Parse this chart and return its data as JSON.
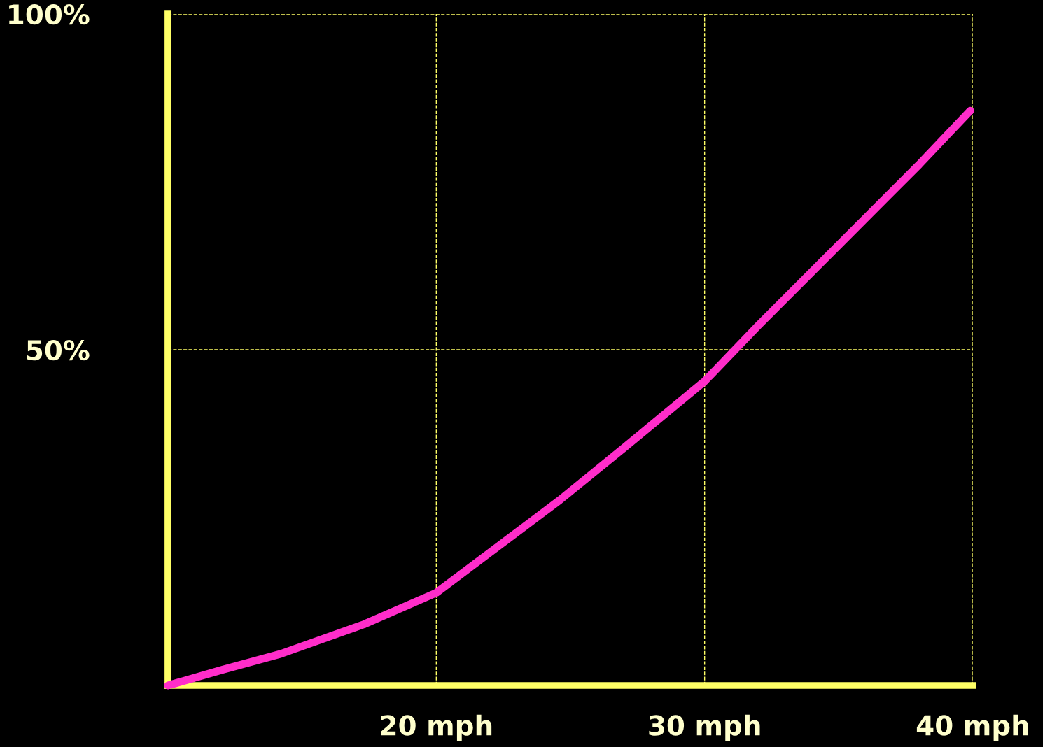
{
  "chart_data": {
    "type": "line",
    "x": [
      10,
      12,
      14.2,
      17.3,
      20,
      22,
      24.6,
      27,
      30,
      32,
      35,
      38,
      39.9
    ],
    "series": [
      {
        "color": "#ff2dca",
        "values": [
          0,
          2.3,
          4.7,
          9.1,
          13.8,
          19.8,
          27.6,
          35.4,
          45.3,
          53.6,
          65.6,
          77.6,
          85.6
        ]
      }
    ],
    "xlim": [
      10,
      40
    ],
    "ylim": [
      0,
      100
    ],
    "xticks": [
      {
        "value": 20,
        "label": "20 mph"
      },
      {
        "value": 30,
        "label": "30 mph"
      },
      {
        "value": 40,
        "label": "40 mph"
      }
    ],
    "yticks": [
      {
        "value": 50,
        "label": "50%"
      },
      {
        "value": 100,
        "label": "100%"
      }
    ],
    "grid": true,
    "marker": "none",
    "line_style": "solid"
  }
}
